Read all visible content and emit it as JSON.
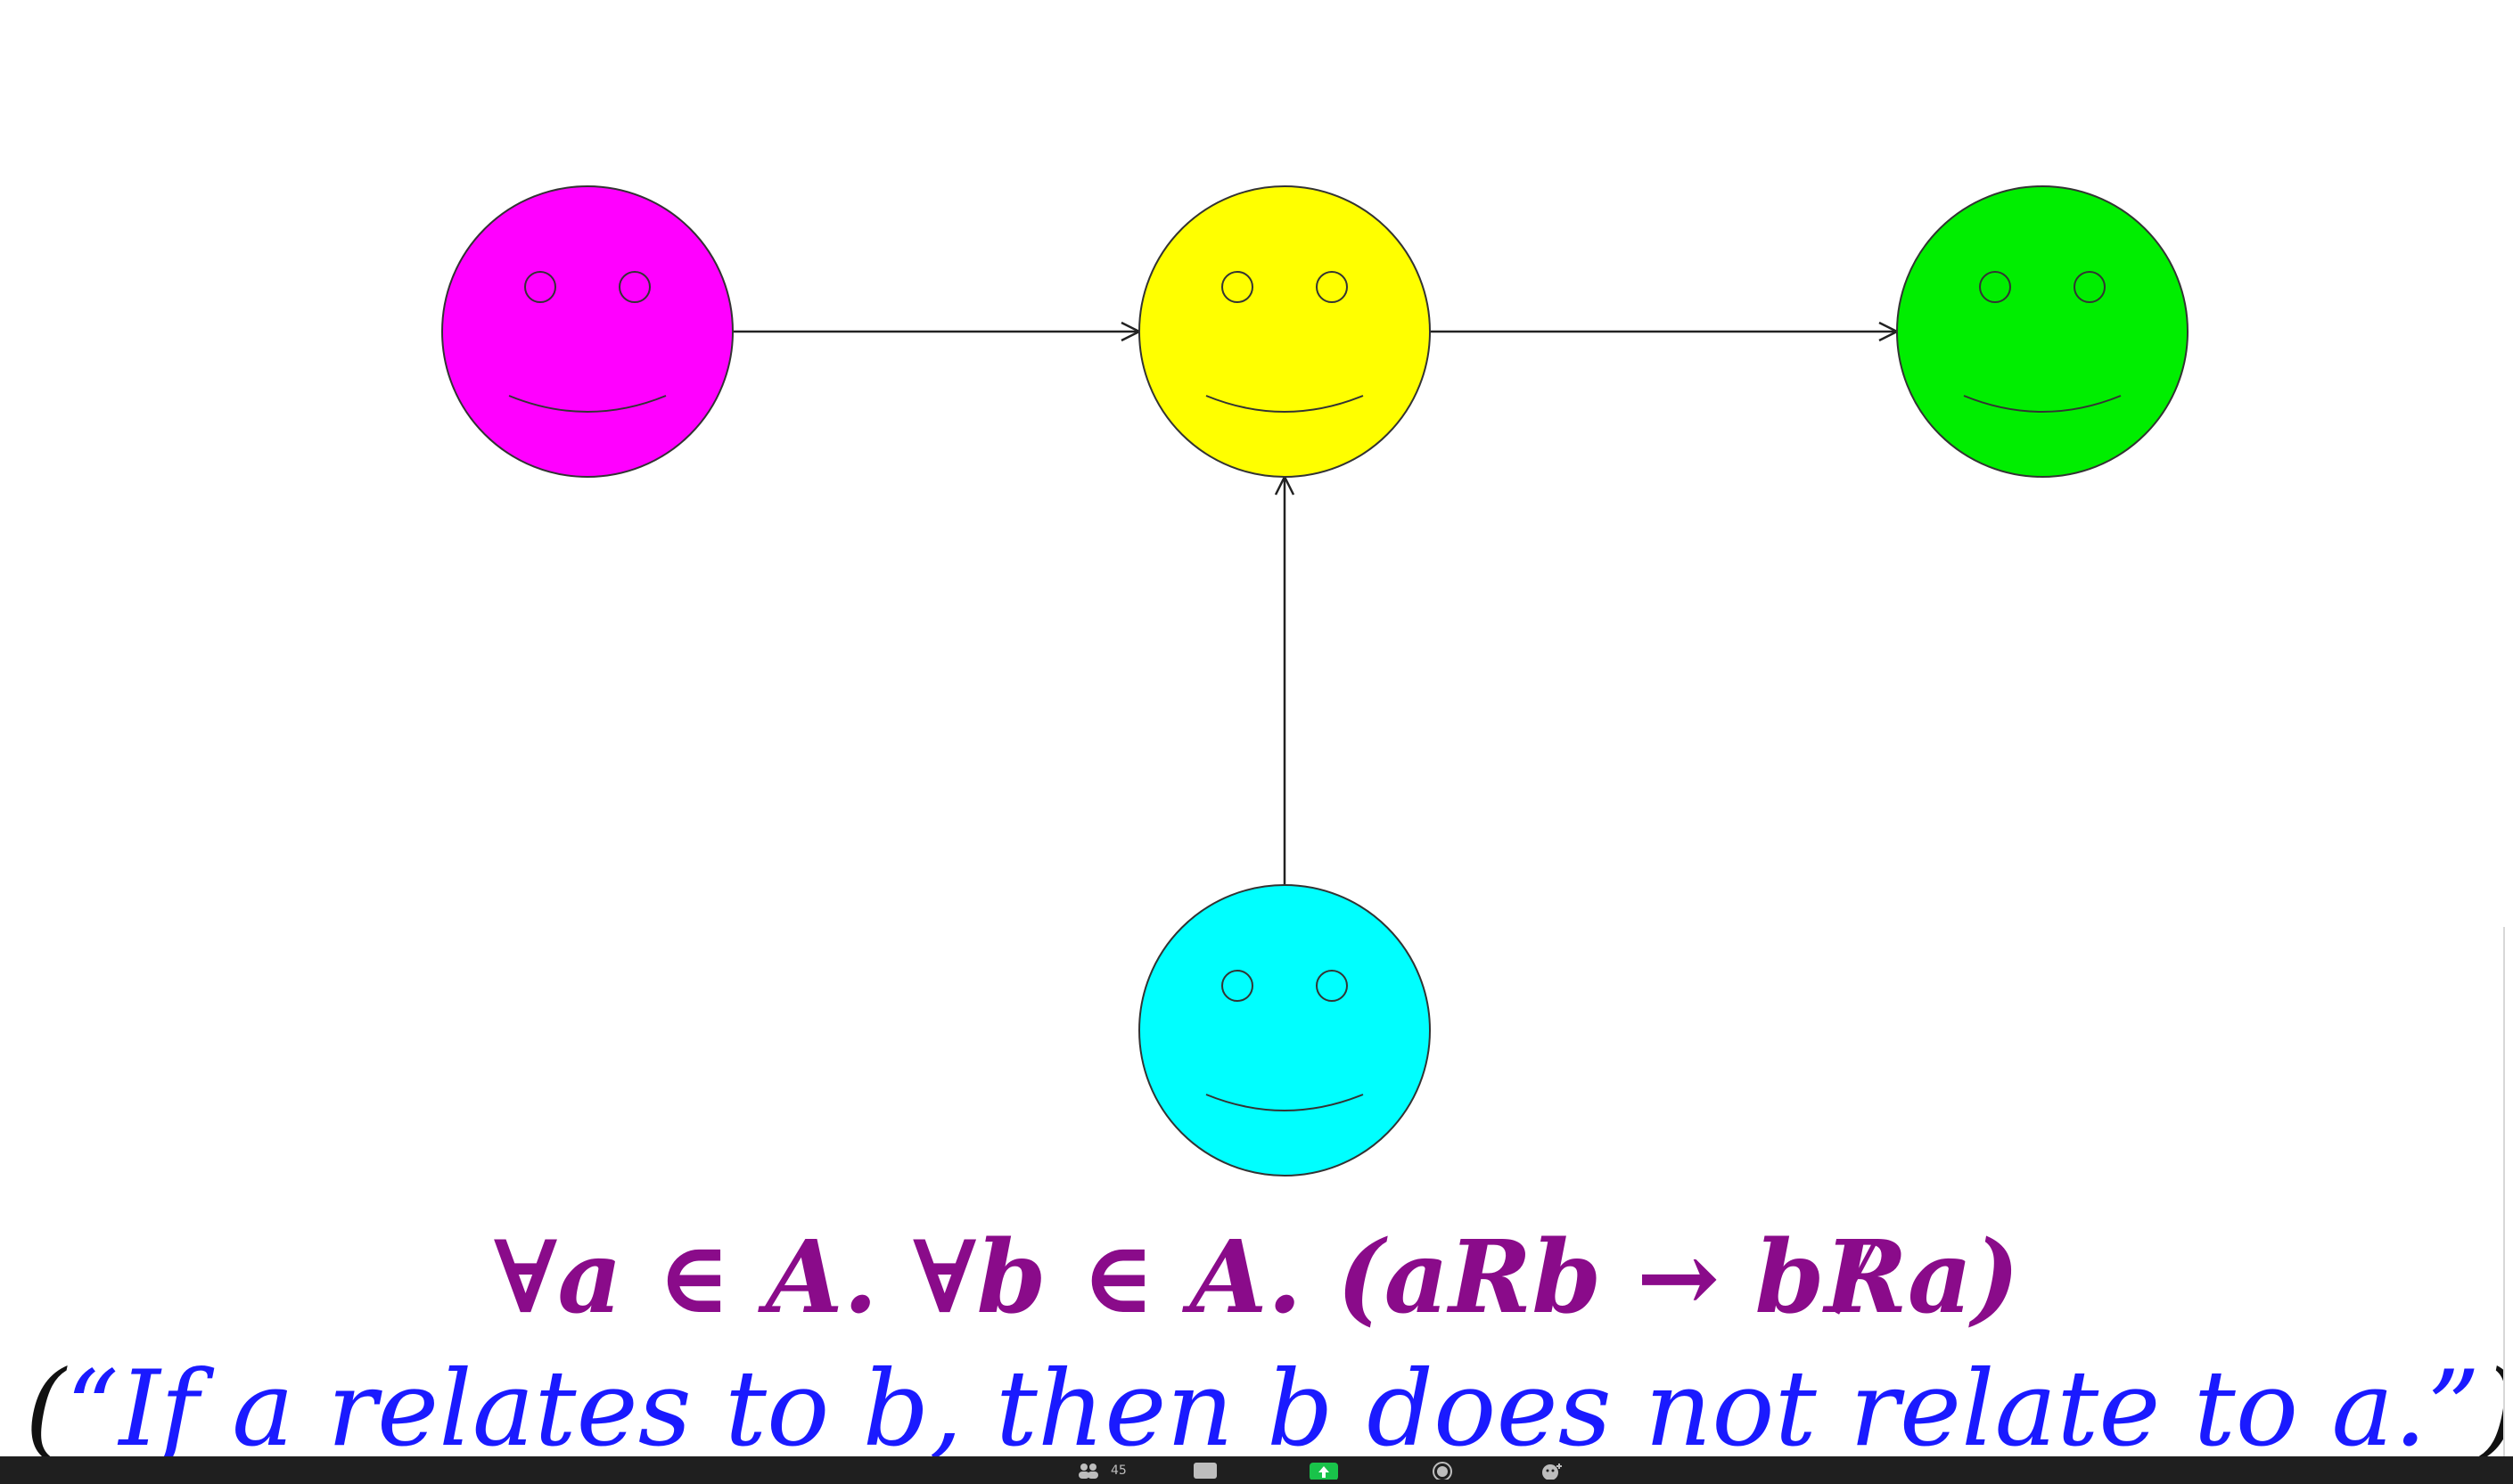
{
  "diagram": {
    "nodes": [
      {
        "id": "magenta",
        "color": "#ff00ff"
      },
      {
        "id": "yellow",
        "color": "#ffff00"
      },
      {
        "id": "green",
        "color": "#00ee00"
      },
      {
        "id": "cyan",
        "color": "#00ffff"
      }
    ],
    "edges": [
      {
        "from": "magenta",
        "to": "yellow"
      },
      {
        "from": "yellow",
        "to": "green"
      },
      {
        "from": "cyan",
        "to": "yellow"
      }
    ]
  },
  "formula": {
    "part1": "∀",
    "part2": "a ",
    "part3": "∈ ",
    "part4": "A. ∀",
    "part5": "b ",
    "part6": "∈ ",
    "part7": "A. (",
    "part8": "aRb ",
    "part9": "→ ",
    "part10": "b",
    "part11": "R",
    "part12": "a",
    "part13": ")",
    "color": "#8a0b8a"
  },
  "caption": {
    "open": "(",
    "text": "“If a relates to b, then b does not relate to a.”",
    "close": ")",
    "color": "#1a1aff"
  },
  "taskbar": {
    "participants_count": "45",
    "icons": [
      "participants-icon",
      "chat-icon",
      "share-screen-icon",
      "record-icon",
      "reactions-icon"
    ]
  }
}
